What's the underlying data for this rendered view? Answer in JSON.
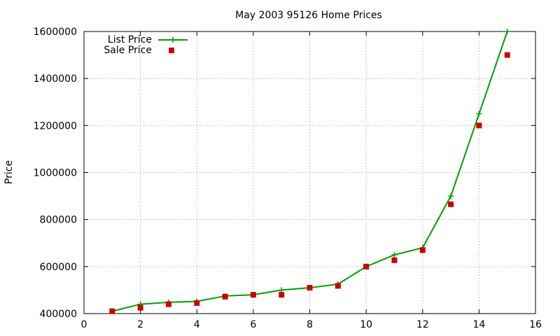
{
  "chart_data": {
    "type": "line",
    "title": "May 2003 95126 Home Prices",
    "xlabel": "",
    "ylabel": "Price",
    "xlim": [
      0,
      16
    ],
    "ylim": [
      400000,
      1600000
    ],
    "x_ticks": [
      0,
      2,
      4,
      6,
      8,
      10,
      12,
      14,
      16
    ],
    "y_ticks": [
      400000,
      600000,
      800000,
      1000000,
      1200000,
      1400000,
      1600000
    ],
    "grid": true,
    "legend_position": "top-left",
    "series": [
      {
        "name": "List Price",
        "style": "lines-points",
        "marker": "plus",
        "color": "#00a000",
        "x": [
          1,
          2,
          3,
          4,
          5,
          6,
          7,
          8,
          9,
          10,
          11,
          12,
          13,
          14,
          15
        ],
        "values": [
          410000,
          440000,
          448000,
          452000,
          475000,
          480000,
          500000,
          510000,
          525000,
          600000,
          650000,
          680000,
          900000,
          1250000,
          1600000
        ]
      },
      {
        "name": "Sale Price",
        "style": "points",
        "marker": "square",
        "color": "#cc0000",
        "x": [
          1,
          2,
          3,
          4,
          5,
          6,
          7,
          8,
          9,
          10,
          11,
          12,
          13,
          14,
          15
        ],
        "values": [
          410000,
          425000,
          440000,
          445000,
          472000,
          480000,
          480000,
          510000,
          518000,
          600000,
          627000,
          670000,
          865000,
          1200000,
          1500000
        ]
      }
    ]
  }
}
